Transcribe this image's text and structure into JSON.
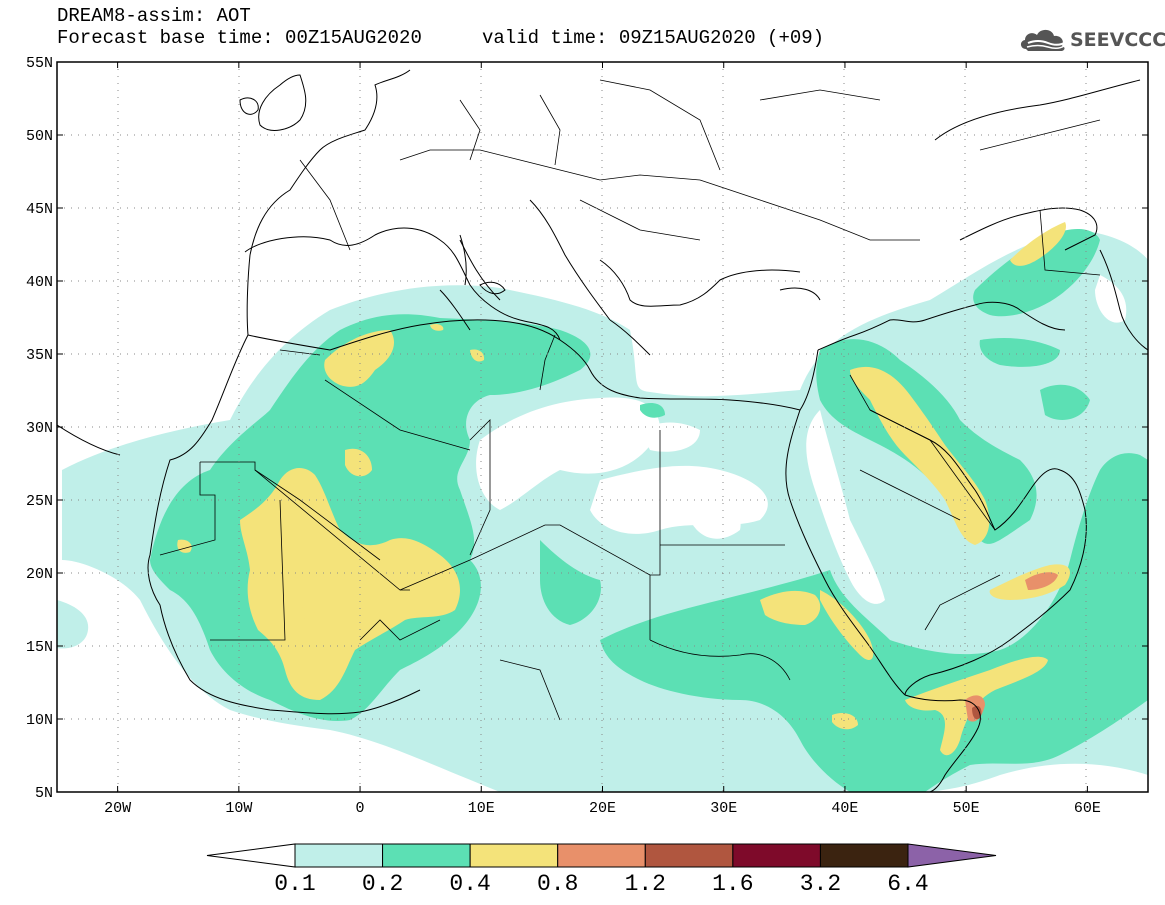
{
  "header": {
    "title": "DREAM8-assim: AOT",
    "base_time": "Forecast base time: 00Z15AUG2020",
    "valid_time": "valid time: 09Z15AUG2020 (+09)"
  },
  "logo": {
    "text": "SEEVCCC"
  },
  "map": {
    "variable": "AOT",
    "lon_range": [
      -25,
      65
    ],
    "lat_range": [
      5,
      55
    ],
    "lat_ticks": [
      "55N",
      "50N",
      "45N",
      "40N",
      "35N",
      "30N",
      "25N",
      "20N",
      "15N",
      "10N",
      "5N"
    ],
    "lon_ticks": [
      "20W",
      "10W",
      "0",
      "10E",
      "20E",
      "30E",
      "40E",
      "50E",
      "60E"
    ],
    "grid": "dotted"
  },
  "colorbar": {
    "levels": [
      "0.1",
      "0.2",
      "0.4",
      "0.8",
      "1.2",
      "1.6",
      "3.2",
      "6.4"
    ],
    "colors": [
      "#ffffff",
      "#c0efe9",
      "#5ce0b4",
      "#f4e37a",
      "#e8906a",
      "#b0563f",
      "#7e0a2a",
      "#3b2310",
      "#8c62a8"
    ]
  },
  "colors": {
    "aot_0_1": "#c0efe9",
    "aot_0_2": "#5ce0b4",
    "aot_0_4": "#f4e37a",
    "aot_0_8": "#e8906a",
    "aot_1_2": "#b0563f"
  }
}
